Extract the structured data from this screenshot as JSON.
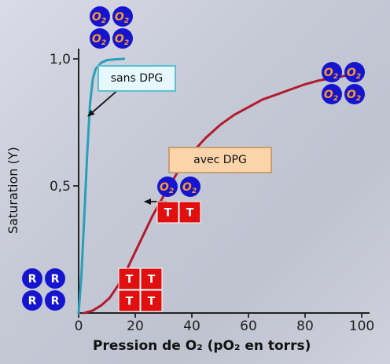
{
  "chart_data": {
    "type": "line",
    "xlabel": "Pression de O₂ (pO₂ en torrs)",
    "ylabel": "Saturation (Y)",
    "xlim": [
      0,
      100
    ],
    "ylim": [
      0,
      1.0
    ],
    "x_ticks": [
      0,
      20,
      40,
      60,
      80,
      100
    ],
    "y_ticks": [
      0.5,
      1.0
    ],
    "x_tick_labels": [
      "0",
      "20",
      "40",
      "60",
      "80",
      "100"
    ],
    "y_tick_labels": [
      "0,5",
      "1,0"
    ],
    "grid": false,
    "series": [
      {
        "name": "sans DPG",
        "color": "#2a9fb9",
        "x": [
          0,
          1,
          2,
          3,
          4,
          5,
          6,
          8,
          10,
          13,
          16
        ],
        "y": [
          0,
          0.15,
          0.38,
          0.62,
          0.82,
          0.92,
          0.96,
          0.985,
          0.995,
          0.998,
          1.0
        ]
      },
      {
        "name": "avec DPG",
        "color": "#b31a2e",
        "x": [
          2,
          5,
          8,
          11,
          14,
          17,
          20,
          23,
          26,
          30,
          35,
          40,
          45,
          50,
          55,
          60,
          65,
          70,
          75,
          80,
          85,
          90,
          95
        ],
        "y": [
          0.0,
          0.01,
          0.03,
          0.06,
          0.11,
          0.17,
          0.24,
          0.31,
          0.38,
          0.46,
          0.555,
          0.63,
          0.69,
          0.74,
          0.78,
          0.81,
          0.84,
          0.86,
          0.88,
          0.9,
          0.915,
          0.925,
          0.935
        ]
      }
    ],
    "annotations": [
      {
        "text": "sans DPG"
      },
      {
        "text": "avec DPG"
      }
    ],
    "subunit_markers": [
      {
        "name": "o2-cluster-top",
        "kind": "O2",
        "layout": "2x2"
      },
      {
        "name": "o2-cluster-right",
        "kind": "O2",
        "layout": "2x2"
      },
      {
        "name": "o2-pair-mid",
        "kind": "O2",
        "layout": "1x2"
      },
      {
        "name": "t-pair-mid",
        "kind": "T",
        "layout": "1x2"
      },
      {
        "name": "r-cluster",
        "kind": "R",
        "layout": "2x2"
      },
      {
        "name": "t-cluster",
        "kind": "T",
        "layout": "2x2"
      }
    ],
    "marker_text": {
      "o2": "O",
      "o2_sub": "2",
      "r": "R",
      "t": "T"
    },
    "colors": {
      "blue_circle": "#1515d0",
      "red_square": "#e01010",
      "orange_o2": "#ff9a2a",
      "arrow": "#111111"
    }
  }
}
